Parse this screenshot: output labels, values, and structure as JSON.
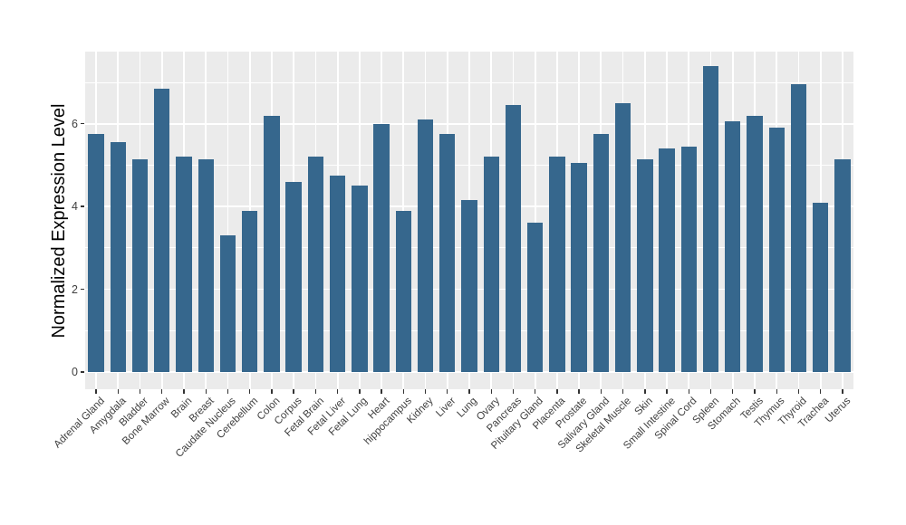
{
  "chart_data": {
    "type": "bar",
    "title": "",
    "xlabel": "",
    "ylabel": "Normalized Expression Level",
    "categories": [
      "Adrenal Gland",
      "Amygdala",
      "Bladder",
      "Bone Marrow",
      "Brain",
      "Breast",
      "Caudate Nucleus",
      "Cerebellum",
      "Colon",
      "Corpus",
      "Fetal Brain",
      "Fetal Liver",
      "Fetal Lung",
      "Heart",
      "hippocampus",
      "Kidney",
      "Liver",
      "Lung",
      "Ovary",
      "Pancreas",
      "Pituitary Gland",
      "Placenta",
      "Prostate",
      "Salivary Gland",
      "Skeletal Muscle",
      "Skin",
      "Small Intestine",
      "Spinal Cord",
      "Spleen",
      "Stomach",
      "Testis",
      "Thymus",
      "Thyroid",
      "Trachea",
      "Uterus"
    ],
    "values": [
      5.75,
      5.55,
      5.15,
      6.85,
      5.2,
      5.15,
      3.3,
      3.9,
      6.2,
      4.6,
      5.2,
      4.75,
      4.5,
      6.0,
      3.9,
      6.1,
      5.75,
      4.15,
      5.2,
      6.45,
      3.6,
      5.2,
      5.05,
      5.75,
      6.5,
      5.15,
      5.4,
      5.45,
      7.4,
      6.05,
      6.2,
      5.9,
      6.95,
      4.1,
      5.15
    ],
    "y_ticks": [
      0,
      2,
      4,
      6
    ],
    "y_minor_ticks": [
      1,
      3,
      5,
      7
    ],
    "ylim": [
      -0.42,
      7.74
    ],
    "grid": "on",
    "legend": "none",
    "colors": {
      "bar": "#36678D",
      "panel_background": "#EBEBEB",
      "gridline": "#FFFFFF",
      "tick_mark": "#333333",
      "tick_text": "#404040",
      "axis_title_text": "#000000"
    }
  }
}
